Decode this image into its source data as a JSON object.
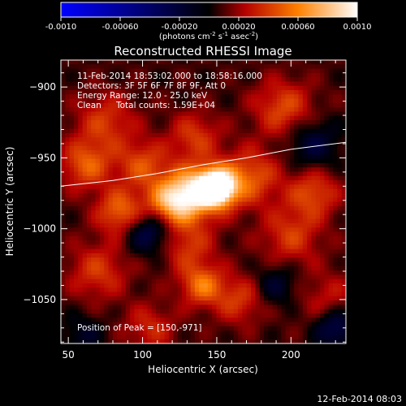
{
  "chart_data": {
    "type": "heatmap",
    "title": "Reconstructed RHESSI Image",
    "xlabel": "Heliocentric X (arcsec)",
    "ylabel": "Heliocentric Y (arcsec)",
    "xlim": [
      45,
      237
    ],
    "ylim": [
      -1081,
      -881
    ],
    "x_ticks": [
      50,
      100,
      150,
      200
    ],
    "y_ticks": [
      -900,
      -950,
      -1000,
      -1050
    ],
    "colorbar": {
      "range": [
        -0.001,
        0.001
      ],
      "ticks": [
        "-0.0010",
        "-0.00060",
        "-0.00020",
        "0.00020",
        "0.00060",
        "0.0010"
      ],
      "tick_values": [
        -0.001,
        -0.0006,
        -0.0002,
        0.0002,
        0.0006,
        0.001
      ],
      "unit_label": "(photons cm",
      "unit_exp1": "-2",
      "unit_mid": " s",
      "unit_exp2": "-1",
      "unit_mid2": " asec",
      "unit_exp3": "-2",
      "unit_end": ")",
      "colors": [
        "#0000ff",
        "#000000",
        "#b40000",
        "#ff8000",
        "#ffffff"
      ]
    },
    "info_lines": [
      "11-Feb-2014 18:53:02.000 to 18:58:16.000",
      "Detectors: 3F 5F 6F 7F 8F 9F, Att 0",
      "Energy Range: 12.0 - 25.0 keV"
    ],
    "clean_label": "Clean",
    "total_counts": "Total counts: 1.59E+04",
    "peak_text": "Position of Peak = [150,-971]",
    "peak": [
      150,
      -971
    ],
    "limb_curve": [
      [
        45,
        -970
      ],
      [
        80,
        -966
      ],
      [
        110,
        -961
      ],
      [
        140,
        -955
      ],
      [
        170,
        -950
      ],
      [
        200,
        -944
      ],
      [
        237,
        -939
      ]
    ],
    "sources": [
      {
        "x": 150,
        "y": -971,
        "amp": 0.00115,
        "sigma": 9
      },
      {
        "x": 133,
        "y": -975,
        "amp": 0.0007,
        "sigma": 13
      },
      {
        "x": 118,
        "y": -982,
        "amp": 0.0005,
        "sigma": 11
      },
      {
        "x": 172,
        "y": -964,
        "amp": 0.0004,
        "sigma": 14
      },
      {
        "x": 85,
        "y": -988,
        "amp": 0.00045,
        "sigma": 11
      },
      {
        "x": 62,
        "y": -955,
        "amp": 0.0004,
        "sigma": 12
      },
      {
        "x": 100,
        "y": -955,
        "amp": 0.00035,
        "sigma": 12
      },
      {
        "x": 75,
        "y": -925,
        "amp": 0.0003,
        "sigma": 14
      },
      {
        "x": 135,
        "y": -935,
        "amp": 0.0003,
        "sigma": 12
      },
      {
        "x": 195,
        "y": -915,
        "amp": 0.00035,
        "sigma": 14
      },
      {
        "x": 215,
        "y": -975,
        "amp": 0.00035,
        "sigma": 12
      },
      {
        "x": 200,
        "y": -1005,
        "amp": 0.0003,
        "sigma": 14
      },
      {
        "x": 130,
        "y": -1012,
        "amp": 0.0003,
        "sigma": 13
      },
      {
        "x": 140,
        "y": -1040,
        "amp": 0.00045,
        "sigma": 10
      },
      {
        "x": 165,
        "y": -1050,
        "amp": 0.0003,
        "sigma": 12
      },
      {
        "x": 70,
        "y": -1030,
        "amp": 0.0003,
        "sigma": 14
      },
      {
        "x": 105,
        "y": -1070,
        "amp": 0.00025,
        "sigma": 12
      },
      {
        "x": 225,
        "y": -1050,
        "amp": 0.0002,
        "sigma": 14
      },
      {
        "x": 105,
        "y": -1002,
        "amp": -0.0004,
        "sigma": 11
      },
      {
        "x": 215,
        "y": -940,
        "amp": -0.0003,
        "sigma": 12
      },
      {
        "x": 230,
        "y": -1070,
        "amp": -0.0004,
        "sigma": 10
      },
      {
        "x": 190,
        "y": -1040,
        "amp": -0.00025,
        "sigma": 10
      },
      {
        "x": 60,
        "y": -1075,
        "amp": -0.0002,
        "sigma": 10
      }
    ]
  },
  "footer_date": "12-Feb-2014 08:03"
}
